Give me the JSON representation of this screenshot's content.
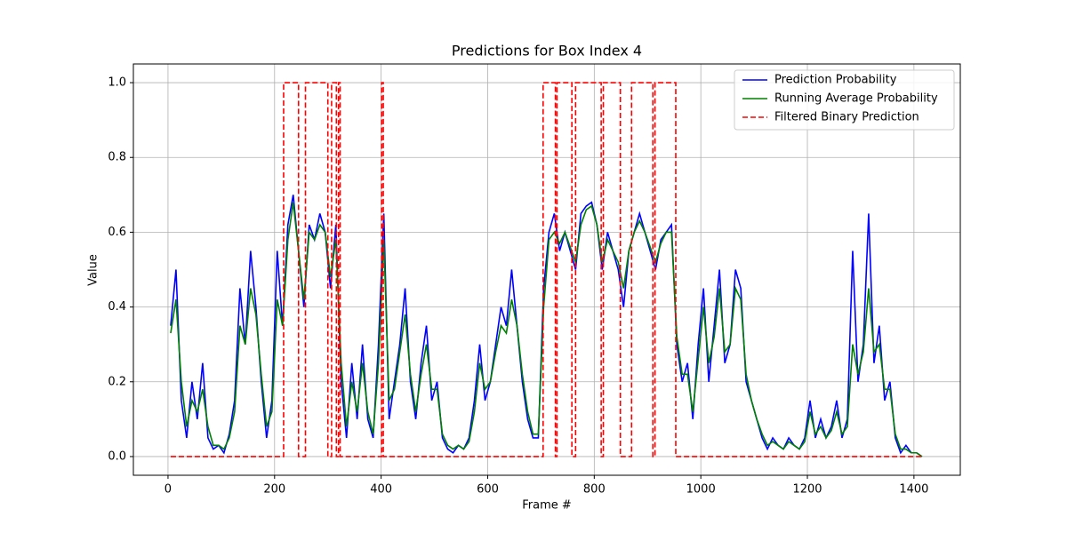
{
  "chart_data": {
    "type": "line",
    "title": "Predictions for Box Index 4",
    "x_label": "Frame #",
    "y_label": "Value",
    "x": [
      5,
      15,
      25,
      35,
      45,
      55,
      65,
      75,
      85,
      95,
      105,
      115,
      125,
      135,
      145,
      155,
      165,
      175,
      185,
      195,
      205,
      215,
      225,
      235,
      245,
      255,
      265,
      275,
      285,
      295,
      305,
      315,
      325,
      335,
      345,
      355,
      365,
      375,
      385,
      395,
      405,
      415,
      425,
      435,
      445,
      455,
      465,
      475,
      485,
      495,
      505,
      515,
      525,
      535,
      545,
      555,
      565,
      575,
      585,
      595,
      605,
      615,
      625,
      635,
      645,
      655,
      665,
      675,
      685,
      695,
      705,
      715,
      725,
      735,
      745,
      755,
      765,
      775,
      785,
      795,
      805,
      815,
      825,
      835,
      845,
      855,
      865,
      875,
      885,
      895,
      905,
      915,
      925,
      935,
      945,
      955,
      965,
      975,
      985,
      995,
      1005,
      1015,
      1025,
      1035,
      1045,
      1055,
      1065,
      1075,
      1085,
      1095,
      1105,
      1115,
      1125,
      1135,
      1145,
      1155,
      1165,
      1175,
      1185,
      1195,
      1205,
      1215,
      1225,
      1235,
      1245,
      1255,
      1265,
      1275,
      1285,
      1295,
      1305,
      1315,
      1325,
      1335,
      1345,
      1355,
      1365,
      1375,
      1385,
      1395,
      1405,
      1415
    ],
    "series": [
      {
        "name": "Prediction Probability",
        "color": "#0000ff",
        "dash": false,
        "values": [
          0.35,
          0.5,
          0.15,
          0.05,
          0.2,
          0.1,
          0.25,
          0.05,
          0.02,
          0.03,
          0.01,
          0.06,
          0.15,
          0.45,
          0.3,
          0.55,
          0.4,
          0.2,
          0.05,
          0.15,
          0.55,
          0.35,
          0.62,
          0.7,
          0.55,
          0.4,
          0.62,
          0.58,
          0.65,
          0.6,
          0.45,
          0.62,
          0.2,
          0.05,
          0.25,
          0.1,
          0.3,
          0.1,
          0.05,
          0.3,
          0.65,
          0.1,
          0.2,
          0.3,
          0.45,
          0.2,
          0.1,
          0.25,
          0.35,
          0.15,
          0.2,
          0.05,
          0.02,
          0.01,
          0.03,
          0.02,
          0.05,
          0.15,
          0.3,
          0.15,
          0.2,
          0.3,
          0.4,
          0.35,
          0.5,
          0.35,
          0.2,
          0.1,
          0.05,
          0.05,
          0.45,
          0.6,
          0.65,
          0.55,
          0.6,
          0.55,
          0.5,
          0.65,
          0.67,
          0.68,
          0.62,
          0.5,
          0.6,
          0.55,
          0.5,
          0.4,
          0.55,
          0.6,
          0.65,
          0.6,
          0.55,
          0.5,
          0.58,
          0.6,
          0.62,
          0.3,
          0.2,
          0.25,
          0.1,
          0.3,
          0.45,
          0.2,
          0.35,
          0.5,
          0.25,
          0.3,
          0.5,
          0.45,
          0.2,
          0.15,
          0.1,
          0.05,
          0.02,
          0.05,
          0.03,
          0.02,
          0.05,
          0.03,
          0.02,
          0.05,
          0.15,
          0.05,
          0.1,
          0.05,
          0.08,
          0.15,
          0.05,
          0.1,
          0.55,
          0.2,
          0.3,
          0.65,
          0.25,
          0.35,
          0.15,
          0.2,
          0.05,
          0.01,
          0.03,
          0.01,
          0.01,
          0.0
        ]
      },
      {
        "name": "Running Average Probability",
        "color": "#008000",
        "dash": false,
        "values": [
          0.33,
          0.42,
          0.2,
          0.08,
          0.15,
          0.12,
          0.18,
          0.08,
          0.03,
          0.03,
          0.02,
          0.05,
          0.12,
          0.35,
          0.3,
          0.45,
          0.38,
          0.22,
          0.08,
          0.12,
          0.42,
          0.35,
          0.58,
          0.68,
          0.55,
          0.42,
          0.6,
          0.58,
          0.62,
          0.6,
          0.48,
          0.58,
          0.25,
          0.08,
          0.2,
          0.12,
          0.25,
          0.12,
          0.06,
          0.25,
          0.58,
          0.15,
          0.18,
          0.28,
          0.38,
          0.22,
          0.12,
          0.22,
          0.3,
          0.18,
          0.18,
          0.06,
          0.03,
          0.02,
          0.03,
          0.02,
          0.04,
          0.12,
          0.25,
          0.18,
          0.2,
          0.28,
          0.35,
          0.33,
          0.42,
          0.35,
          0.22,
          0.12,
          0.06,
          0.06,
          0.4,
          0.58,
          0.6,
          0.57,
          0.6,
          0.56,
          0.52,
          0.62,
          0.66,
          0.67,
          0.62,
          0.52,
          0.58,
          0.55,
          0.52,
          0.45,
          0.55,
          0.6,
          0.63,
          0.6,
          0.56,
          0.52,
          0.57,
          0.6,
          0.6,
          0.32,
          0.22,
          0.22,
          0.12,
          0.26,
          0.4,
          0.25,
          0.32,
          0.45,
          0.28,
          0.3,
          0.45,
          0.42,
          0.22,
          0.15,
          0.1,
          0.06,
          0.03,
          0.04,
          0.03,
          0.02,
          0.04,
          0.03,
          0.02,
          0.04,
          0.12,
          0.06,
          0.08,
          0.05,
          0.07,
          0.12,
          0.06,
          0.08,
          0.3,
          0.22,
          0.28,
          0.45,
          0.28,
          0.3,
          0.18,
          0.18,
          0.06,
          0.02,
          0.02,
          0.01,
          0.01,
          0.0
        ]
      },
      {
        "name": "Filtered Binary Prediction",
        "color": "#ff0000",
        "dash": true,
        "x": [
          5,
          217,
          217,
          245,
          245,
          258,
          258,
          300,
          300,
          307,
          307,
          316,
          316,
          320,
          320,
          323,
          323,
          401,
          401,
          404,
          404,
          704,
          704,
          727,
          727,
          730,
          730,
          758,
          758,
          765,
          765,
          813,
          813,
          817,
          817,
          849,
          849,
          870,
          870,
          910,
          910,
          914,
          914,
          953,
          953,
          1415
        ],
        "values": [
          0,
          0,
          1,
          1,
          0,
          0,
          1,
          1,
          0,
          0,
          1,
          1,
          0,
          0,
          1,
          1,
          0,
          0,
          1,
          1,
          0,
          0,
          1,
          1,
          0,
          0,
          1,
          1,
          0,
          0,
          1,
          1,
          0,
          0,
          1,
          1,
          0,
          0,
          1,
          1,
          0,
          0,
          1,
          1,
          0,
          0
        ]
      }
    ],
    "xlim": [
      -65,
      1487
    ],
    "ylim": [
      -0.05,
      1.05
    ],
    "xticks": [
      0,
      200,
      400,
      600,
      800,
      1000,
      1200,
      1400
    ],
    "yticks": [
      {
        "value": 0,
        "label": "0.0"
      },
      0.2,
      0.4,
      0.6,
      0.8,
      {
        "value": 1,
        "label": "1.0"
      }
    ],
    "grid": true,
    "legend": "upper right"
  }
}
